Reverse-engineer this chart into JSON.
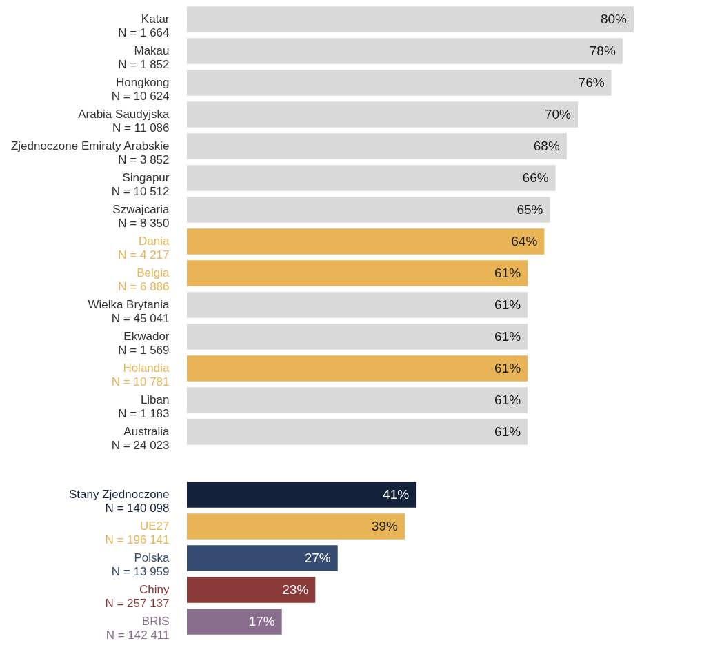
{
  "chart_data": [
    {
      "type": "bar",
      "orientation": "horizontal",
      "categories": [
        "Katar\nN = 1 664",
        "Makau\nN = 1 852",
        "Hongkong\nN = 10 624",
        "Arabia Saudyjska\nN = 11 086",
        "Zjednoczone Emiraty Arabskie\nN = 3 852",
        "Singapur\nN = 10 512",
        "Szwajcaria\nN = 8 350",
        "Dania\nN = 4 217",
        "Belgia\nN = 6 886",
        "Wielka Brytania\nN = 45 041",
        "Ekwador\nN = 1 569",
        "Holandia\nN = 10 781",
        "Liban\nN = 1 183",
        "Australia\nN = 24 023"
      ],
      "values": [
        80,
        78,
        76,
        70,
        68,
        66,
        65,
        64,
        61,
        61,
        61,
        61,
        61,
        61
      ],
      "value_labels": [
        "80%",
        "78%",
        "76%",
        "70%",
        "68%",
        "66%",
        "65%",
        "64%",
        "61%",
        "61%",
        "61%",
        "61%",
        "61%",
        "61%"
      ],
      "colors": [
        "#d9d9d9",
        "#d9d9d9",
        "#d9d9d9",
        "#d9d9d9",
        "#d9d9d9",
        "#d9d9d9",
        "#d9d9d9",
        "#e8b455",
        "#e8b455",
        "#d9d9d9",
        "#d9d9d9",
        "#e8b455",
        "#d9d9d9",
        "#d9d9d9"
      ]
    },
    {
      "type": "bar",
      "orientation": "horizontal",
      "categories": [
        "Stany Zjednoczone\nN = 140 098",
        "UE27\nN = 196 141",
        "Polska\nN = 13 959",
        "Chiny\nN = 257 137",
        "BRIS\nN = 142 411"
      ],
      "values": [
        41,
        39,
        27,
        23,
        17
      ],
      "value_labels": [
        "41%",
        "39%",
        "27%",
        "23%",
        "17%"
      ],
      "colors": [
        "#13213a",
        "#e8b455",
        "#344a6e",
        "#8b3a3a",
        "#8a6e8e"
      ]
    }
  ]
}
